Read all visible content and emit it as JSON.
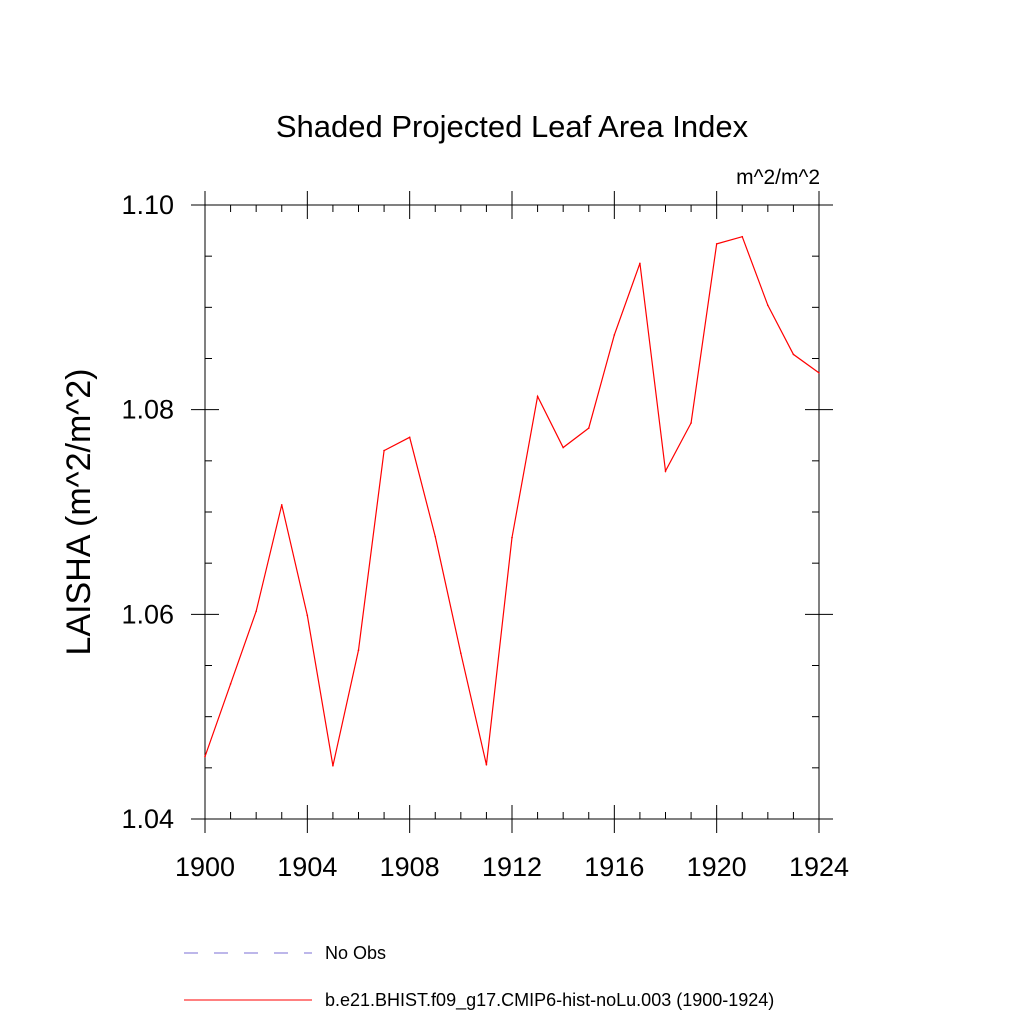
{
  "chart_data": {
    "type": "line",
    "title": "Shaded Projected Leaf Area Index",
    "units_label": "m^2/m^2",
    "xlabel": "",
    "ylabel": "LAISHA  (m^2/m^2)",
    "xlim": [
      1900,
      1924
    ],
    "ylim": [
      1.04,
      1.1
    ],
    "x_major_ticks": [
      1900,
      1904,
      1908,
      1912,
      1916,
      1920,
      1924
    ],
    "x_tick_labels": [
      "1900",
      "1904",
      "1908",
      "1912",
      "1916",
      "1920",
      "1924"
    ],
    "x_minor_step": 1,
    "y_major_ticks": [
      1.04,
      1.06,
      1.08,
      1.1
    ],
    "y_tick_labels": [
      "1.04",
      "1.06",
      "1.08",
      "1.10"
    ],
    "y_minor_step": 0.005,
    "grid": false,
    "series": [
      {
        "name": "b.e21.BHIST.f09_g17.CMIP6-hist-noLu.003 (1900-1924)",
        "color": "#ff0000",
        "dash": "solid",
        "x": [
          1900,
          1901,
          1902,
          1903,
          1904,
          1905,
          1906,
          1907,
          1908,
          1909,
          1910,
          1911,
          1912,
          1913,
          1914,
          1915,
          1916,
          1917,
          1918,
          1919,
          1920,
          1921,
          1922,
          1923,
          1924
        ],
        "values": [
          1.0461,
          1.0532,
          1.0603,
          1.0707,
          1.0599,
          1.0452,
          1.0565,
          1.076,
          1.0773,
          1.0676,
          1.0562,
          1.0453,
          1.0675,
          1.0813,
          1.0763,
          1.0782,
          1.0873,
          1.0943,
          1.074,
          1.0787,
          1.0962,
          1.0969,
          1.0902,
          1.0854,
          1.0836
        ]
      }
    ],
    "legend": {
      "placement": "bottom-left",
      "entries": [
        {
          "label": "No Obs",
          "color": "#7b6fd6",
          "dash": "dashed"
        },
        {
          "label": "b.e21.BHIST.f09_g17.CMIP6-hist-noLu.003 (1900-1924)",
          "color": "#ff0000",
          "dash": "solid"
        }
      ]
    }
  }
}
